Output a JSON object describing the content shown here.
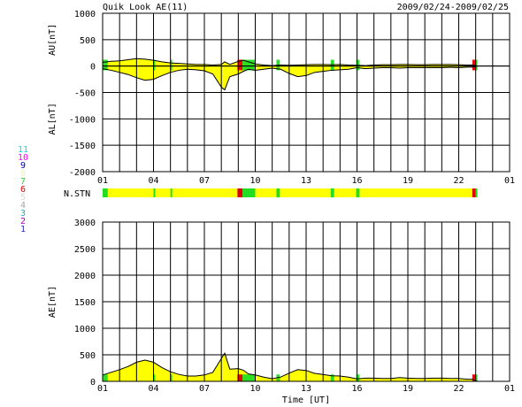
{
  "header": {
    "title": "Quik Look AE(11)",
    "date_range": "2009/02/24-2009/02/25"
  },
  "colors": {
    "fill": "#ffff00",
    "grid": "#000000",
    "green": "#22dd22",
    "red": "#dd0000"
  },
  "legend": {
    "station_count_label": "N.STN",
    "levels": [
      {
        "label": "11",
        "color": "#00e0e0"
      },
      {
        "label": "10",
        "color": "#ff00ff"
      },
      {
        "label": "9",
        "color": "#0000b0"
      },
      {
        "label": "8",
        "color": "#f0f0c0"
      },
      {
        "label": "7",
        "color": "#33cc33"
      },
      {
        "label": "6",
        "color": "#dd0000"
      },
      {
        "label": "5",
        "color": "#d8d8d8"
      },
      {
        "label": "4",
        "color": "#a8a8a8"
      },
      {
        "label": "3",
        "color": "#20b0b0"
      },
      {
        "label": "2",
        "color": "#b000b0"
      },
      {
        "label": "1",
        "color": "#3030c0"
      }
    ]
  },
  "chart_data": [
    {
      "type": "area",
      "panel": "AU/AL",
      "ylabel_top": "AU[nT]",
      "ylabel_bottom": "AL[nT]",
      "ylim": [
        -2000,
        1000
      ],
      "yticks": [
        "1000",
        "500",
        "0",
        "-500",
        "-1000",
        "-1500",
        "-2000"
      ],
      "xticks": [
        "01",
        "04",
        "07",
        "10",
        "13",
        "16",
        "19",
        "22",
        "01"
      ],
      "x_range_hours": [
        1,
        25
      ],
      "au": {
        "x": [
          1,
          1.5,
          2,
          2.5,
          3,
          3.5,
          4,
          4.5,
          5,
          5.5,
          6,
          6.5,
          7,
          7.5,
          8,
          8.2,
          8.5,
          9,
          9.3,
          9.6,
          10,
          10.5,
          11,
          11.5,
          12,
          12.5,
          13,
          13.5,
          14,
          14.5,
          15,
          15.5,
          16,
          16.5,
          17,
          17.5,
          18,
          18.5,
          19,
          19.5,
          20,
          20.5,
          21,
          21.5,
          22,
          22.5,
          22.8,
          23.1
        ],
        "y": [
          70,
          90,
          100,
          120,
          140,
          130,
          110,
          80,
          60,
          50,
          40,
          30,
          30,
          20,
          30,
          80,
          30,
          90,
          110,
          80,
          40,
          20,
          10,
          20,
          15,
          20,
          25,
          30,
          30,
          25,
          30,
          20,
          15,
          10,
          20,
          25,
          25,
          30,
          30,
          25,
          25,
          30,
          30,
          30,
          25,
          20,
          20,
          0
        ]
      },
      "al": {
        "x": [
          1,
          1.5,
          2,
          2.5,
          3,
          3.5,
          4,
          4.5,
          5,
          5.5,
          6,
          6.5,
          7,
          7.5,
          8,
          8.2,
          8.5,
          9,
          9.3,
          9.6,
          10,
          10.5,
          11,
          11.5,
          12,
          12.5,
          13,
          13.5,
          14,
          14.5,
          15,
          15.5,
          16,
          16.5,
          17,
          17.5,
          18,
          18.5,
          19,
          19.5,
          20,
          20.5,
          21,
          21.5,
          22,
          22.5,
          22.8,
          23.1
        ],
        "y": [
          -50,
          -80,
          -120,
          -160,
          -220,
          -270,
          -250,
          -180,
          -120,
          -80,
          -60,
          -70,
          -90,
          -150,
          -400,
          -450,
          -200,
          -150,
          -100,
          -60,
          -80,
          -60,
          -40,
          -60,
          -140,
          -200,
          -180,
          -120,
          -100,
          -80,
          -70,
          -60,
          -30,
          -50,
          -40,
          -30,
          -30,
          -40,
          -30,
          -30,
          -30,
          -30,
          -30,
          -25,
          -30,
          -20,
          -20,
          0
        ]
      }
    },
    {
      "type": "area",
      "panel": "AE",
      "ylabel": "AE[nT]",
      "xlabel": "Time [UT]",
      "ylim": [
        0,
        3000
      ],
      "yticks": [
        "3000",
        "2500",
        "2000",
        "1500",
        "1000",
        "500",
        "0"
      ],
      "xticks": [
        "01",
        "04",
        "07",
        "10",
        "13",
        "16",
        "19",
        "22",
        "01"
      ],
      "x_range_hours": [
        1,
        25
      ],
      "series": [
        {
          "x": [
            1,
            1.5,
            2,
            2.5,
            3,
            3.5,
            4,
            4.5,
            5,
            5.5,
            6,
            6.5,
            7,
            7.5,
            8,
            8.2,
            8.5,
            9,
            9.3,
            9.6,
            10,
            10.5,
            11,
            11.5,
            12,
            12.5,
            13,
            13.5,
            14,
            14.5,
            15,
            15.5,
            16,
            16.5,
            17,
            17.5,
            18,
            18.5,
            19,
            19.5,
            20,
            20.5,
            21,
            21.5,
            22,
            22.5,
            22.8,
            23.1
          ],
          "y": [
            120,
            170,
            220,
            280,
            360,
            400,
            360,
            260,
            180,
            130,
            100,
            100,
            120,
            170,
            430,
            530,
            230,
            240,
            210,
            140,
            120,
            80,
            50,
            80,
            155,
            220,
            205,
            150,
            130,
            105,
            100,
            80,
            45,
            60,
            60,
            55,
            55,
            70,
            60,
            55,
            55,
            60,
            60,
            55,
            55,
            40,
            40,
            0
          ]
        }
      ]
    },
    {
      "type": "heatmap",
      "panel": "N.STN",
      "description_colors": "station count timeline",
      "segments": [
        {
          "start": 1.0,
          "end": 1.3,
          "color": "#22dd22"
        },
        {
          "start": 4.0,
          "end": 4.1,
          "color": "#22dd22"
        },
        {
          "start": 5.0,
          "end": 5.1,
          "color": "#22dd22"
        },
        {
          "start": 8.95,
          "end": 9.25,
          "color": "#dd0000"
        },
        {
          "start": 9.25,
          "end": 10.0,
          "color": "#22dd22"
        },
        {
          "start": 11.25,
          "end": 11.45,
          "color": "#22dd22"
        },
        {
          "start": 14.45,
          "end": 14.65,
          "color": "#22dd22"
        },
        {
          "start": 15.95,
          "end": 16.15,
          "color": "#22dd22"
        },
        {
          "start": 22.8,
          "end": 23.0,
          "color": "#dd0000"
        },
        {
          "start": 23.0,
          "end": 23.1,
          "color": "#22dd22"
        }
      ],
      "x_range_hours": [
        1,
        25
      ],
      "data_end_hour": 23.1
    }
  ]
}
